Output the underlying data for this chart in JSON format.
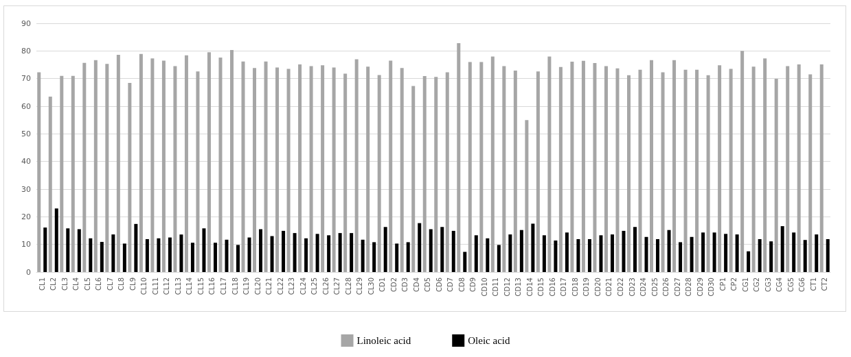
{
  "chart_data": {
    "type": "bar",
    "categories": [
      "CL1",
      "CL2",
      "CL3",
      "CL4",
      "CL5",
      "CL6",
      "CL7",
      "CL8",
      "CL9",
      "CL10",
      "CL11",
      "CL12",
      "CL13",
      "CL14",
      "CL15",
      "CL16",
      "CL17",
      "CL18",
      "CL19",
      "CL20",
      "CL21",
      "CL22",
      "CL23",
      "CL24",
      "CL25",
      "CL26",
      "CL27",
      "CL28",
      "CL29",
      "CL30",
      "CD1",
      "CD2",
      "CD3",
      "CD4",
      "CD5",
      "CD6",
      "CD7",
      "CD8",
      "CD9",
      "CD10",
      "CD11",
      "CD12",
      "CD13",
      "CD14",
      "CD15",
      "CD16",
      "CD17",
      "CD18",
      "CD19",
      "CD20",
      "CD21",
      "CD22",
      "CD23",
      "CD24",
      "CD25",
      "CD26",
      "CD27",
      "CD28",
      "CD29",
      "CD30",
      "CP1",
      "CP2",
      "CG1",
      "CG2",
      "CG3",
      "CG4",
      "CG5",
      "CG6",
      "CT1",
      "CT2"
    ],
    "series": [
      {
        "name": "Linoleic acid",
        "color": "#a6a6a6",
        "values": [
          72.3,
          63.5,
          71,
          71,
          75.7,
          76.7,
          75.3,
          78.6,
          68.4,
          78.9,
          77.3,
          76.5,
          74.5,
          78.4,
          72.6,
          79.5,
          77.6,
          80.3,
          76.2,
          73.8,
          76.2,
          74,
          73.5,
          75.1,
          74.5,
          74.8,
          74,
          71.8,
          77,
          74.3,
          71.3,
          76.5,
          73.8,
          67.3,
          70.9,
          70.6,
          72.3,
          82.8,
          76,
          76,
          78,
          74.5,
          72.9,
          55,
          72.6,
          78,
          74.2,
          76.1,
          76.4,
          75.6,
          74.5,
          73.7,
          71.2,
          73.2,
          76.7,
          72.3,
          76.7,
          73.2,
          73.2,
          71.2,
          74.8,
          73.5,
          80,
          74.3,
          77.3,
          69.9,
          74.5,
          75.1,
          71.5,
          75.1
        ]
      },
      {
        "name": "Oleic acid",
        "color": "#000000",
        "values": [
          16.1,
          23,
          15.8,
          15.5,
          12.2,
          10.9,
          13.6,
          10.3,
          17.4,
          11.9,
          12.2,
          12.5,
          13.6,
          10.6,
          15.8,
          10.6,
          11.7,
          9.8,
          12.5,
          15.5,
          13,
          14.9,
          14.1,
          12.2,
          13.8,
          13.3,
          14.1,
          14.1,
          11.7,
          10.8,
          16.3,
          10.3,
          10.8,
          17.7,
          15.5,
          16.3,
          14.9,
          7.3,
          13.3,
          12.2,
          9.8,
          13.6,
          15.2,
          17.5,
          13.3,
          11.4,
          14.3,
          11.9,
          11.9,
          13.3,
          13.6,
          14.9,
          16.3,
          12.7,
          11.9,
          15.2,
          10.8,
          12.7,
          14.3,
          14.3,
          13.8,
          13.6,
          7.5,
          11.9,
          11.1,
          16.6,
          14.3,
          11.6,
          13.6,
          11.9
        ]
      }
    ],
    "ylim": [
      0,
      90
    ],
    "yticks": [
      0,
      10,
      20,
      30,
      40,
      50,
      60,
      70,
      80,
      90
    ],
    "grid": "y",
    "legend": "bottom"
  }
}
